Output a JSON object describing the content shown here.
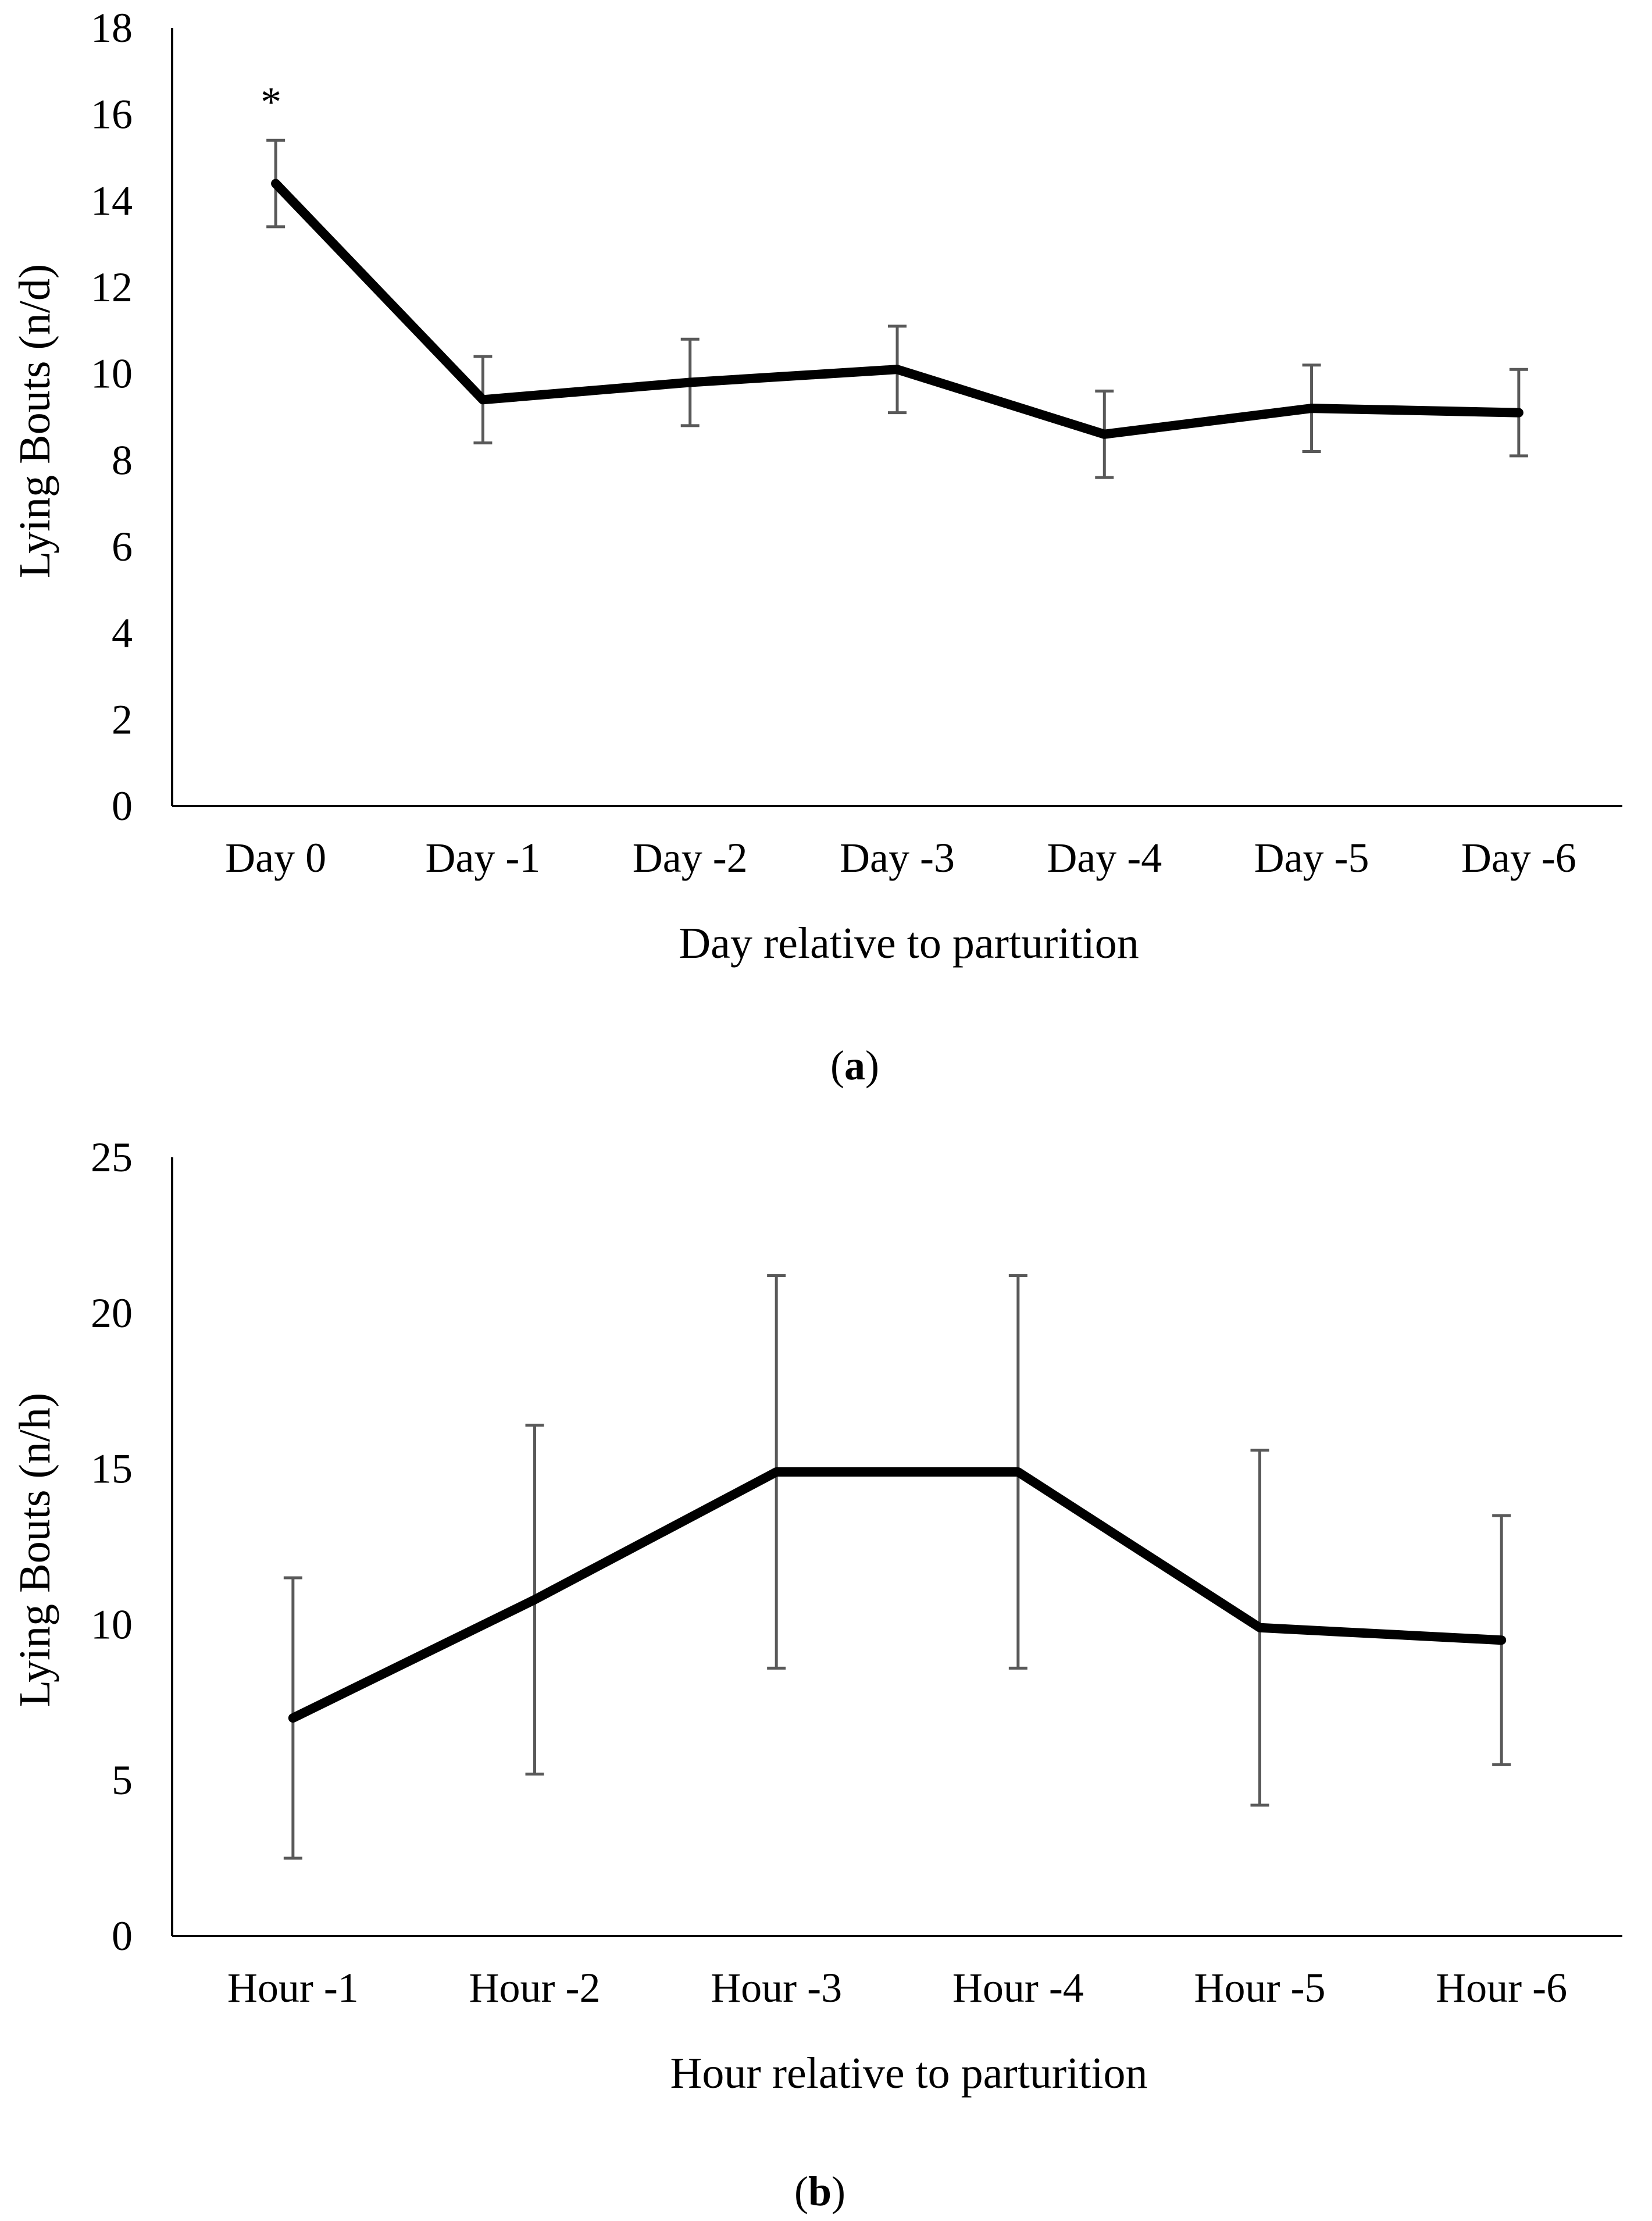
{
  "chart_data": [
    {
      "panel": "a",
      "type": "line",
      "panel_label": {
        "open": "(",
        "letter": "a",
        "close": ")"
      },
      "xlabel": "Day relative to parturition",
      "ylabel": "Lying Bouts (n/d)",
      "ylim": [
        0,
        18
      ],
      "yticks": [
        "0",
        "2",
        "4",
        "6",
        "8",
        "10",
        "12",
        "14",
        "16",
        "18"
      ],
      "categories": [
        "Day 0",
        "Day -1",
        "Day -2",
        "Day -3",
        "Day -4",
        "Day -5",
        "Day -6"
      ],
      "series": [
        {
          "values": [
            14.4,
            9.4,
            9.8,
            10.1,
            8.6,
            9.2,
            9.1
          ],
          "error": [
            1.0,
            1.0,
            1.0,
            1.0,
            1.0,
            1.0,
            1.0
          ]
        }
      ],
      "annotations": [
        {
          "category_index": 0,
          "text": "*"
        }
      ],
      "grid": false,
      "colors": {
        "line": "#000000",
        "error_bar": "#595959"
      }
    },
    {
      "panel": "b",
      "type": "line",
      "panel_label": {
        "open": "(",
        "letter": "b",
        "close": ")"
      },
      "xlabel": "Hour relative to parturition",
      "ylabel": "Lying Bouts (n/h)",
      "ylim": [
        0,
        25
      ],
      "yticks": [
        "0",
        "5",
        "10",
        "15",
        "20",
        "25"
      ],
      "categories": [
        "Hour -1",
        "Hour -2",
        "Hour -3",
        "Hour -4",
        "Hour -5",
        "Hour -6"
      ],
      "series": [
        {
          "values": [
            7.0,
            10.8,
            14.9,
            14.9,
            9.9,
            9.5
          ],
          "error": [
            4.5,
            5.6,
            6.3,
            6.3,
            5.7,
            4.0
          ]
        }
      ],
      "annotations": [],
      "grid": false,
      "colors": {
        "line": "#000000",
        "error_bar": "#595959"
      }
    }
  ]
}
